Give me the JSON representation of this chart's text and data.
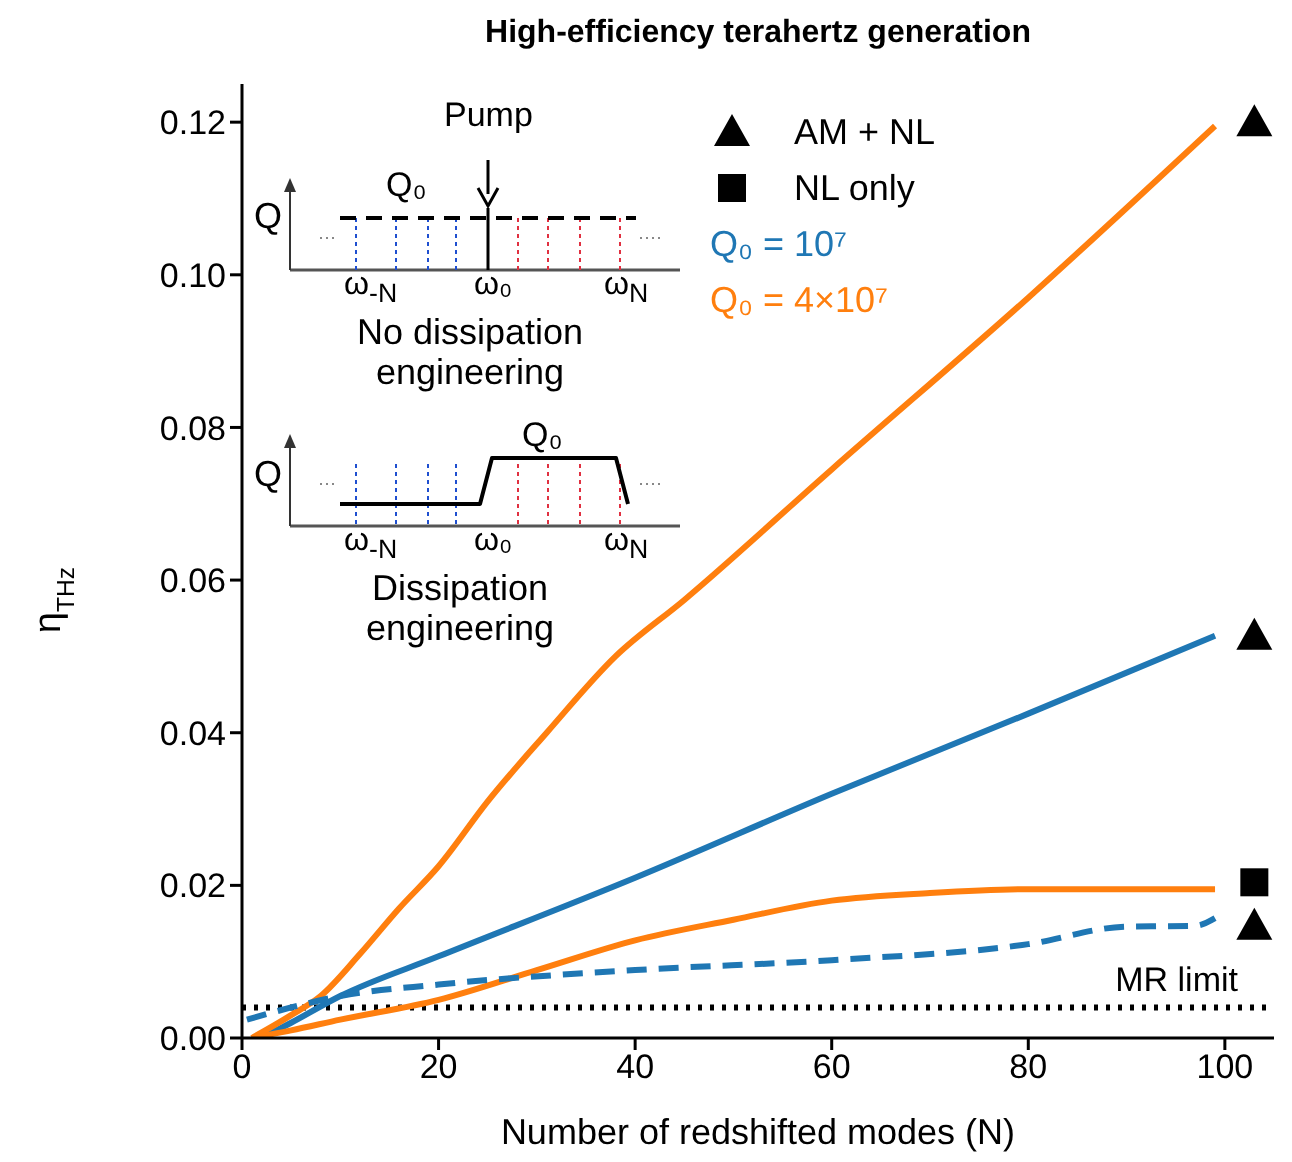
{
  "chart_data": {
    "type": "line",
    "title": "High-efficiency terahertz generation",
    "xlabel": "Number of redshifted modes (N)",
    "ylabel": "η$_{THz}$",
    "xlim": [
      0,
      105
    ],
    "xticks": [
      0,
      20,
      40,
      60,
      80,
      100
    ],
    "ylim": [
      0,
      0.125
    ],
    "yticks": [
      {
        "value": 0,
        "label": "0.00"
      },
      {
        "value": 0.02,
        "label": "0.02"
      },
      {
        "value": 0.04,
        "label": "0.04"
      },
      {
        "value": 0.06,
        "label": "0.06"
      },
      {
        "value": 0.08,
        "label": "0.08"
      },
      {
        "value": 0.1,
        "label": "0.10"
      },
      {
        "value": 0.12,
        "label": "0.12"
      }
    ],
    "grid": false,
    "legend": "top right",
    "series": [
      {
        "name": "AM + NL",
        "type": "scatter",
        "marker": "triangle",
        "color": "#000000",
        "x": [
          103,
          103,
          103
        ],
        "values": [
          0.12,
          0.0527,
          0.0147
        ]
      },
      {
        "name": "NL only",
        "type": "scatter",
        "marker": "square",
        "color": "#000000",
        "x": [
          103
        ],
        "values": [
          0.0204
        ]
      },
      {
        "name": "Q₀ = 10⁷",
        "color": "#1f77b4",
        "line_style": "solid",
        "x": [
          2,
          5,
          10,
          20,
          40,
          60,
          80,
          99
        ],
        "values": [
          0,
          0.002,
          0.0055,
          0.0107,
          0.021,
          0.032,
          0.0425,
          0.0527
        ]
      },
      {
        "name": "Q₀ = 4×10⁷",
        "color": "#ff7f0e",
        "line_style": "solid",
        "x": [
          1,
          5,
          8,
          12,
          16,
          20,
          25,
          31,
          38,
          45,
          60,
          80,
          99
        ],
        "values": [
          0,
          0.003,
          0.0055,
          0.011,
          0.017,
          0.0225,
          0.031,
          0.04,
          0.05,
          0.0574,
          0.0745,
          0.097,
          0.1195
        ]
      },
      {
        "color": "#ff7f0e",
        "line_style": "solid",
        "x": [
          1,
          5,
          10,
          20,
          30,
          40,
          50,
          60,
          70,
          80,
          90,
          99
        ],
        "values": [
          0,
          0.001,
          0.0024,
          0.005,
          0.0089,
          0.0128,
          0.0155,
          0.018,
          0.019,
          0.0195,
          0.0195,
          0.0195
        ]
      },
      {
        "color": "#1f77b4",
        "line_style": "dashed",
        "x": [
          0.5,
          5,
          10,
          20,
          40,
          60,
          80,
          90,
          97,
          99
        ],
        "values": [
          0.0024,
          0.004,
          0.0055,
          0.007,
          0.0089,
          0.0102,
          0.0123,
          0.0146,
          0.0147,
          0.0157
        ]
      }
    ],
    "ref_lines": [
      {
        "axis": "y",
        "value": 0.004,
        "label": "MR limit",
        "color": "#000000",
        "line_style": "dotted"
      }
    ],
    "annotations": [
      "Pump",
      "Q₀",
      "Q",
      "ω$_{-N}$",
      "ω₀",
      "ω$_{N}$",
      "No dissipation engineering",
      "Q₀",
      "Q",
      "ω$_{-N}$",
      "ω₀",
      "ω$_{N}$",
      "Dissipation engineering"
    ]
  }
}
